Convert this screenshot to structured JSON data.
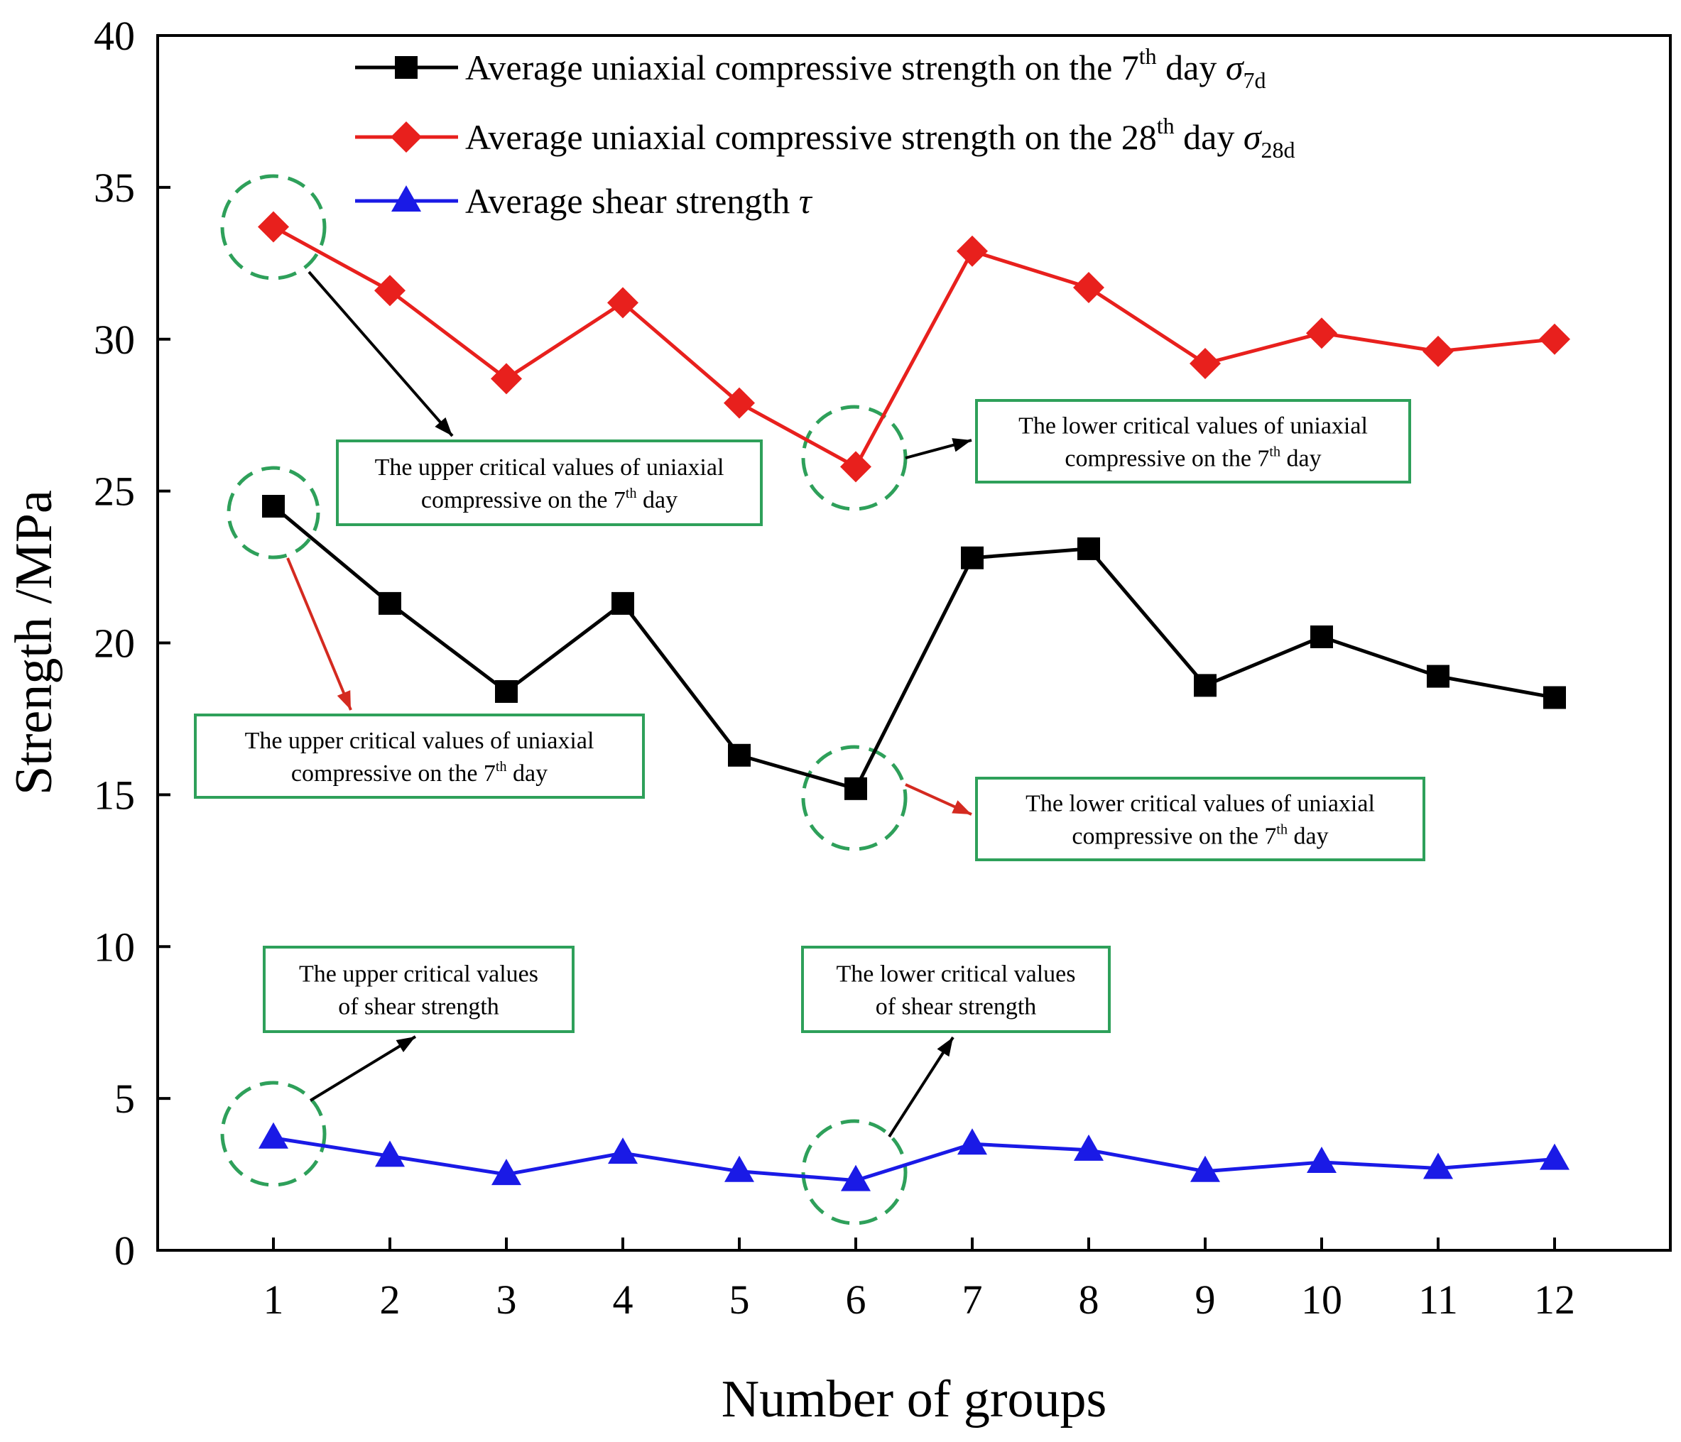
{
  "chart_data": {
    "type": "line",
    "xlabel": "Number of groups",
    "ylabel": "Strength /MPa",
    "xlim": [
      0,
      12.95
    ],
    "ylim": [
      0,
      40
    ],
    "grid": false,
    "legend_position": "top",
    "x": [
      1,
      2,
      3,
      4,
      5,
      6,
      7,
      8,
      9,
      10,
      11,
      12
    ],
    "xticks": [
      "1",
      "2",
      "3",
      "4",
      "5",
      "6",
      "7",
      "8",
      "9",
      "10",
      "11",
      "12"
    ],
    "yticks": [
      "0",
      "5",
      "10",
      "15",
      "20",
      "25",
      "30",
      "35",
      "40"
    ],
    "series": [
      {
        "key": "s7d",
        "name": "Average uniaxial compressive strength on the 7th day σ7d",
        "label_parts": {
          "pre": "Average uniaxial compressive strength on the 7",
          "sup": "th",
          "mid": " day ",
          "sym": "σ",
          "sub": "7d"
        },
        "color": "#000000",
        "marker": "square",
        "values": [
          24.5,
          21.3,
          18.4,
          21.3,
          16.3,
          15.2,
          22.8,
          23.1,
          18.6,
          20.2,
          18.9,
          18.2
        ]
      },
      {
        "key": "s28d",
        "name": "Average uniaxial compressive strength on the 28th day σ28d",
        "label_parts": {
          "pre": "Average uniaxial compressive strength on the 28",
          "sup": "th",
          "mid": " day ",
          "sym": "σ",
          "sub": "28d"
        },
        "color": "#e8201d",
        "marker": "diamond",
        "values": [
          33.7,
          31.6,
          28.7,
          31.2,
          27.9,
          25.8,
          32.9,
          31.7,
          29.2,
          30.2,
          29.6,
          30.0
        ]
      },
      {
        "key": "tau",
        "name": "Average shear strength τ",
        "label_parts": {
          "pre": "Average shear strength ",
          "sup": "",
          "mid": "",
          "sym": "τ",
          "sub": ""
        },
        "color": "#1a1ae6",
        "marker": "triangle",
        "values": [
          3.7,
          3.1,
          2.5,
          3.2,
          2.6,
          2.3,
          3.5,
          3.3,
          2.6,
          2.9,
          2.7,
          3.0
        ]
      }
    ],
    "annotations": [
      {
        "key": "upper-28d",
        "color": "#e8201d",
        "highlight_x": 1,
        "highlight_y": 33.7,
        "arrow_color": "#000000",
        "lines": [
          {
            "pre": "The upper critical values of uniaxial",
            "sup": "",
            "post": ""
          },
          {
            "pre": "compressive on the 7",
            "sup": "th",
            "post": " day"
          }
        ]
      },
      {
        "key": "lower-28d",
        "highlight_x": 6,
        "highlight_y": 25.8,
        "arrow_color": "#000000",
        "lines": [
          {
            "pre": "The lower critical values of uniaxial",
            "sup": "",
            "post": ""
          },
          {
            "pre": "compressive on the 7",
            "sup": "th",
            "post": " day"
          }
        ]
      },
      {
        "key": "upper-7d",
        "highlight_x": 1,
        "highlight_y": 24.2,
        "arrow_color": "#d42a20",
        "lines": [
          {
            "pre": "The upper critical values of uniaxial",
            "sup": "",
            "post": ""
          },
          {
            "pre": "compressive on the 7",
            "sup": "th",
            "post": " day"
          }
        ]
      },
      {
        "key": "lower-7d",
        "highlight_x": 6,
        "highlight_y": 15.4,
        "arrow_color": "#d42a20",
        "lines": [
          {
            "pre": "The lower critical values of uniaxial",
            "sup": "",
            "post": ""
          },
          {
            "pre": "compressive on the 7",
            "sup": "th",
            "post": " day"
          }
        ]
      },
      {
        "key": "upper-tau",
        "highlight_x": 1,
        "highlight_y": 3.7,
        "arrow_color": "#000000",
        "lines": [
          {
            "pre": "The upper critical values",
            "sup": "",
            "post": ""
          },
          {
            "pre": "of shear strength",
            "sup": "",
            "post": ""
          }
        ]
      },
      {
        "key": "lower-tau",
        "highlight_x": 6,
        "highlight_y": 2.5,
        "arrow_color": "#000000",
        "lines": [
          {
            "pre": "The lower critical values",
            "sup": "",
            "post": ""
          },
          {
            "pre": "of shear strength",
            "sup": "",
            "post": ""
          }
        ]
      }
    ],
    "annotation_box_color": "#2ea05a",
    "highlight_circle_color": "#2ea05a"
  }
}
